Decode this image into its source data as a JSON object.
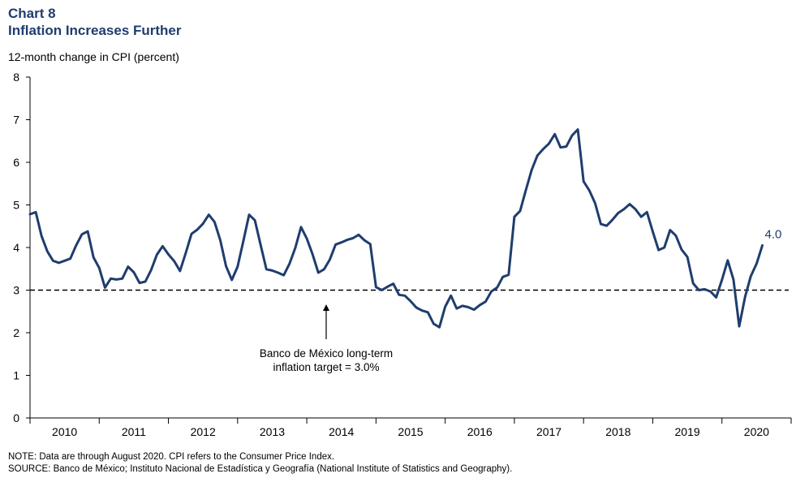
{
  "header": {
    "chart_number": "Chart 8",
    "title": "Inflation Increases Further"
  },
  "notes": {
    "note": "NOTE: Data are through August 2020. CPI refers to the Consumer Price Index.",
    "source": "SOURCE: Banco de México; Instituto Nacional de Estadística y Geografía  (National Institute of Statistics and Geography)."
  },
  "chart_data": {
    "type": "line",
    "title": "Inflation Increases Further",
    "ylabel": "12-month change in CPI (percent)",
    "ylim": [
      0,
      8
    ],
    "yticks": [
      0,
      1,
      2,
      3,
      4,
      5,
      6,
      7,
      8
    ],
    "x_categories": [
      "2010",
      "2011",
      "2012",
      "2013",
      "2014",
      "2015",
      "2016",
      "2017",
      "2018",
      "2019",
      "2020"
    ],
    "x_start": "2010-01",
    "x_end": "2020-08",
    "grid": false,
    "series": [
      {
        "color": "#1f3d6e",
        "x": [
          "2010-01",
          "2010-02",
          "2010-03",
          "2010-04",
          "2010-05",
          "2010-06",
          "2010-07",
          "2010-08",
          "2010-09",
          "2010-10",
          "2010-11",
          "2010-12",
          "2011-01",
          "2011-02",
          "2011-03",
          "2011-04",
          "2011-05",
          "2011-06",
          "2011-07",
          "2011-08",
          "2011-09",
          "2011-10",
          "2011-11",
          "2011-12",
          "2012-01",
          "2012-02",
          "2012-03",
          "2012-04",
          "2012-05",
          "2012-06",
          "2012-07",
          "2012-08",
          "2012-09",
          "2012-10",
          "2012-11",
          "2012-12",
          "2013-01",
          "2013-02",
          "2013-03",
          "2013-04",
          "2013-05",
          "2013-06",
          "2013-07",
          "2013-08",
          "2013-09",
          "2013-10",
          "2013-11",
          "2013-12",
          "2014-01",
          "2014-02",
          "2014-03",
          "2014-04",
          "2014-05",
          "2014-06",
          "2014-07",
          "2014-08",
          "2014-09",
          "2014-10",
          "2014-11",
          "2014-12",
          "2015-01",
          "2015-02",
          "2015-03",
          "2015-04",
          "2015-05",
          "2015-06",
          "2015-07",
          "2015-08",
          "2015-09",
          "2015-10",
          "2015-11",
          "2015-12",
          "2016-01",
          "2016-02",
          "2016-03",
          "2016-04",
          "2016-05",
          "2016-06",
          "2016-07",
          "2016-08",
          "2016-09",
          "2016-10",
          "2016-11",
          "2016-12",
          "2017-01",
          "2017-02",
          "2017-03",
          "2017-04",
          "2017-05",
          "2017-06",
          "2017-07",
          "2017-08",
          "2017-09",
          "2017-10",
          "2017-11",
          "2017-12",
          "2018-01",
          "2018-02",
          "2018-03",
          "2018-04",
          "2018-05",
          "2018-06",
          "2018-07",
          "2018-08",
          "2018-09",
          "2018-10",
          "2018-11",
          "2018-12",
          "2019-01",
          "2019-02",
          "2019-03",
          "2019-04",
          "2019-05",
          "2019-06",
          "2019-07",
          "2019-08",
          "2019-09",
          "2019-10",
          "2019-11",
          "2019-12",
          "2020-01",
          "2020-02",
          "2020-03",
          "2020-04",
          "2020-05",
          "2020-06",
          "2020-07",
          "2020-08"
        ],
        "y": [
          4.78,
          4.83,
          4.27,
          3.91,
          3.69,
          3.64,
          3.69,
          3.74,
          4.05,
          4.31,
          4.38,
          3.77,
          3.52,
          3.06,
          3.27,
          3.25,
          3.27,
          3.55,
          3.42,
          3.17,
          3.2,
          3.47,
          3.83,
          4.03,
          3.84,
          3.68,
          3.45,
          3.87,
          4.32,
          4.42,
          4.56,
          4.77,
          4.6,
          4.17,
          3.56,
          3.24,
          3.55,
          4.15,
          4.77,
          4.64,
          4.06,
          3.49,
          3.46,
          3.41,
          3.35,
          3.62,
          3.99,
          4.48,
          4.21,
          3.84,
          3.41,
          3.49,
          3.72,
          4.07,
          4.12,
          4.18,
          4.22,
          4.3,
          4.17,
          4.08,
          3.07,
          3.0,
          3.08,
          3.15,
          2.89,
          2.87,
          2.74,
          2.59,
          2.52,
          2.48,
          2.21,
          2.13,
          2.61,
          2.87,
          2.57,
          2.63,
          2.6,
          2.54,
          2.65,
          2.73,
          2.97,
          3.06,
          3.31,
          3.36,
          4.72,
          4.86,
          5.35,
          5.82,
          6.16,
          6.31,
          6.44,
          6.66,
          6.35,
          6.37,
          6.63,
          6.77,
          5.55,
          5.34,
          5.04,
          4.55,
          4.51,
          4.65,
          4.81,
          4.9,
          5.02,
          4.9,
          4.72,
          4.83,
          4.37,
          3.94,
          4.0,
          4.41,
          4.28,
          3.95,
          3.78,
          3.16,
          3.0,
          3.02,
          2.97,
          2.83,
          3.24,
          3.7,
          3.25,
          2.15,
          2.84,
          3.33,
          3.62,
          4.05
        ]
      }
    ],
    "end_label": "4.0",
    "reference_line": {
      "value": 3.0,
      "style": "dashed"
    },
    "annotation": "Banco de México long-term\ninflation target = 3.0%"
  }
}
